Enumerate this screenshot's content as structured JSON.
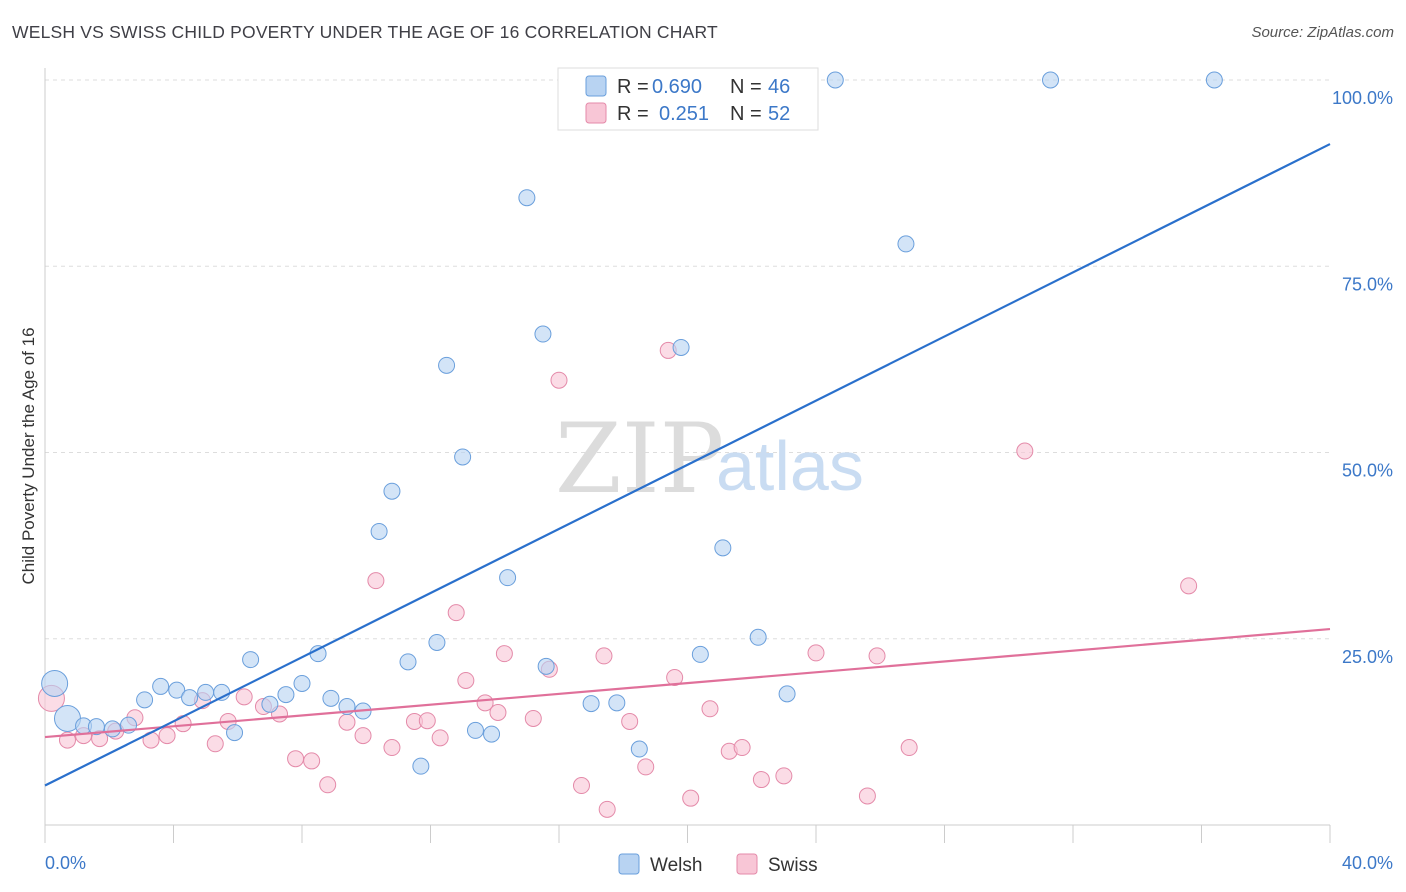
{
  "header": {
    "title": "WELSH VS SWISS CHILD POVERTY UNDER THE AGE OF 16 CORRELATION CHART",
    "source": "Source: ZipAtlas.com"
  },
  "watermark": {
    "zip": "ZIP",
    "atlas": "atlas"
  },
  "legend": {
    "r_label": "R =",
    "n_label": "N =",
    "rows": [
      {
        "r": "0.690",
        "n": "46"
      },
      {
        "r": "0.251",
        "n": "52"
      }
    ]
  },
  "colors": {
    "welsh_fill": "#b8d3f2",
    "welsh_stroke": "#6a9fdc",
    "welsh_line": "#2a70cc",
    "swiss_fill": "#f8c6d6",
    "swiss_stroke": "#e48aa9",
    "swiss_line": "#e0709a",
    "grid": "#dddddd",
    "axis_text": "#3c78c8"
  },
  "chart_data": {
    "type": "scatter",
    "title": "WELSH VS SWISS CHILD POVERTY UNDER THE AGE OF 16 CORRELATION CHART",
    "xlabel": "",
    "ylabel": "Child Poverty Under the Age of 16",
    "xlim": [
      0,
      40
    ],
    "ylim": [
      0,
      103
    ],
    "x_tick_labels": [
      "0.0%",
      "40.0%"
    ],
    "y_ticks": [
      25,
      50,
      75,
      100
    ],
    "y_tick_labels": [
      "25.0%",
      "50.0%",
      "75.0%",
      "100.0%"
    ],
    "grid": true,
    "legend_placement": "top-center",
    "series": [
      {
        "name": "Welsh",
        "trend": {
          "x": [
            0,
            40
          ],
          "y": [
            5.3,
            91.4
          ]
        },
        "points": [
          {
            "x": 0.3,
            "y": 19.0,
            "big": true
          },
          {
            "x": 0.7,
            "y": 14.3,
            "big": true
          },
          {
            "x": 1.2,
            "y": 13.3
          },
          {
            "x": 1.6,
            "y": 13.2
          },
          {
            "x": 2.1,
            "y": 12.9
          },
          {
            "x": 2.6,
            "y": 13.4
          },
          {
            "x": 3.1,
            "y": 16.8
          },
          {
            "x": 3.6,
            "y": 18.6
          },
          {
            "x": 4.1,
            "y": 18.1
          },
          {
            "x": 4.5,
            "y": 17.1
          },
          {
            "x": 5.0,
            "y": 17.8
          },
          {
            "x": 5.5,
            "y": 17.8
          },
          {
            "x": 5.9,
            "y": 12.4
          },
          {
            "x": 6.4,
            "y": 22.2
          },
          {
            "x": 7.0,
            "y": 16.2
          },
          {
            "x": 7.5,
            "y": 17.5
          },
          {
            "x": 8.0,
            "y": 19.0
          },
          {
            "x": 8.5,
            "y": 23.0
          },
          {
            "x": 8.9,
            "y": 17.0
          },
          {
            "x": 9.4,
            "y": 15.9
          },
          {
            "x": 9.9,
            "y": 15.3
          },
          {
            "x": 10.4,
            "y": 39.4
          },
          {
            "x": 10.8,
            "y": 44.8
          },
          {
            "x": 11.3,
            "y": 21.9
          },
          {
            "x": 11.7,
            "y": 7.9
          },
          {
            "x": 12.2,
            "y": 24.5
          },
          {
            "x": 12.5,
            "y": 61.7
          },
          {
            "x": 13.0,
            "y": 49.4
          },
          {
            "x": 13.4,
            "y": 12.7
          },
          {
            "x": 13.9,
            "y": 12.2
          },
          {
            "x": 14.4,
            "y": 33.2
          },
          {
            "x": 15.0,
            "y": 84.2
          },
          {
            "x": 15.5,
            "y": 65.9
          },
          {
            "x": 15.6,
            "y": 21.3
          },
          {
            "x": 17.0,
            "y": 16.3
          },
          {
            "x": 17.8,
            "y": 16.4
          },
          {
            "x": 18.5,
            "y": 10.2
          },
          {
            "x": 19.8,
            "y": 64.1
          },
          {
            "x": 20.4,
            "y": 22.9
          },
          {
            "x": 21.1,
            "y": 37.2
          },
          {
            "x": 22.2,
            "y": 25.2
          },
          {
            "x": 23.1,
            "y": 17.6
          },
          {
            "x": 24.6,
            "y": 100.0
          },
          {
            "x": 26.8,
            "y": 78.0
          },
          {
            "x": 31.3,
            "y": 100.0
          },
          {
            "x": 36.4,
            "y": 100.0
          }
        ]
      },
      {
        "name": "Swiss",
        "trend": {
          "x": [
            0,
            40
          ],
          "y": [
            11.8,
            26.3
          ]
        },
        "points": [
          {
            "x": 0.2,
            "y": 17.0,
            "big": true
          },
          {
            "x": 0.7,
            "y": 11.4
          },
          {
            "x": 1.2,
            "y": 12.0
          },
          {
            "x": 1.7,
            "y": 11.6
          },
          {
            "x": 2.2,
            "y": 12.6
          },
          {
            "x": 2.8,
            "y": 14.4
          },
          {
            "x": 3.3,
            "y": 11.4
          },
          {
            "x": 3.8,
            "y": 12.0
          },
          {
            "x": 4.3,
            "y": 13.6
          },
          {
            "x": 4.9,
            "y": 16.7
          },
          {
            "x": 5.3,
            "y": 10.9
          },
          {
            "x": 5.7,
            "y": 13.9
          },
          {
            "x": 6.2,
            "y": 17.2
          },
          {
            "x": 6.8,
            "y": 15.9
          },
          {
            "x": 7.3,
            "y": 14.9
          },
          {
            "x": 7.8,
            "y": 8.9
          },
          {
            "x": 8.3,
            "y": 8.6
          },
          {
            "x": 8.8,
            "y": 5.4
          },
          {
            "x": 9.4,
            "y": 13.8
          },
          {
            "x": 9.9,
            "y": 12.0
          },
          {
            "x": 10.3,
            "y": 32.8
          },
          {
            "x": 10.8,
            "y": 10.4
          },
          {
            "x": 11.5,
            "y": 13.9
          },
          {
            "x": 11.9,
            "y": 14.0
          },
          {
            "x": 12.3,
            "y": 11.7
          },
          {
            "x": 12.8,
            "y": 28.5
          },
          {
            "x": 13.1,
            "y": 19.4
          },
          {
            "x": 13.7,
            "y": 16.4
          },
          {
            "x": 14.1,
            "y": 15.1
          },
          {
            "x": 14.3,
            "y": 23.0
          },
          {
            "x": 15.2,
            "y": 14.3
          },
          {
            "x": 15.7,
            "y": 20.9
          },
          {
            "x": 16.0,
            "y": 59.7
          },
          {
            "x": 16.7,
            "y": 5.3
          },
          {
            "x": 17.4,
            "y": 22.7
          },
          {
            "x": 17.5,
            "y": 2.1
          },
          {
            "x": 18.2,
            "y": 13.9
          },
          {
            "x": 18.7,
            "y": 7.8
          },
          {
            "x": 19.4,
            "y": 63.7
          },
          {
            "x": 19.6,
            "y": 19.8
          },
          {
            "x": 20.1,
            "y": 3.6
          },
          {
            "x": 20.7,
            "y": 15.6
          },
          {
            "x": 21.3,
            "y": 9.9
          },
          {
            "x": 21.7,
            "y": 10.4
          },
          {
            "x": 22.3,
            "y": 6.1
          },
          {
            "x": 23.0,
            "y": 6.6
          },
          {
            "x": 24.0,
            "y": 23.1
          },
          {
            "x": 25.6,
            "y": 3.9
          },
          {
            "x": 25.9,
            "y": 22.7
          },
          {
            "x": 26.9,
            "y": 10.4
          },
          {
            "x": 30.5,
            "y": 50.2
          },
          {
            "x": 35.6,
            "y": 32.1
          }
        ]
      }
    ]
  }
}
